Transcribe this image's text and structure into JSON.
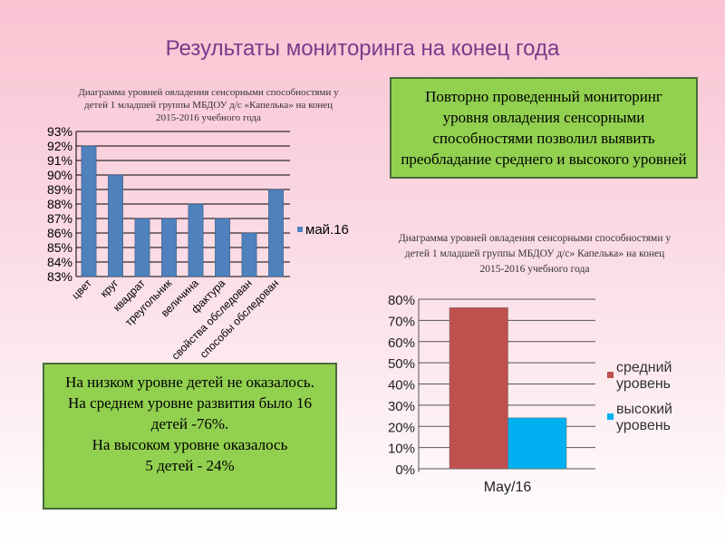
{
  "title": "Результаты мониторинга на конец года",
  "box_top_right": "Повторно проведенный мониторинг уровня овладения сенсорными способностями позволил выявить преобладание среднего и высокого уровней",
  "box_bottom_left": [
    "На низком уровне детей не оказалось.",
    "На среднем уровне развития было 16 детей -76%.",
    "На высоком уровне оказалось",
    "5 детей - 24%"
  ],
  "chart_data": [
    {
      "type": "bar",
      "title": "Диаграмма уровней овладения сенсорными способностями у детей 1 младшей группы МБДОУ д/с «Капелька» на конец 2015-2016 учебного года",
      "categories": [
        "цвет",
        "круг",
        "квадрат",
        "треугольник",
        "величина",
        "фактура",
        "свойства обследован",
        "способы обследован"
      ],
      "series": [
        {
          "name": "май.16",
          "values": [
            92,
            90,
            87,
            87,
            88,
            87,
            86,
            89
          ],
          "color": "#4f81bd"
        }
      ],
      "ylim": [
        83,
        93
      ],
      "yticks": [
        "83%",
        "84%",
        "85%",
        "86%",
        "87%",
        "88%",
        "89%",
        "90%",
        "91%",
        "92%",
        "93%"
      ],
      "legend": "right"
    },
    {
      "type": "bar",
      "title": "Диаграмма уровней овладения сенсорными способностями у детей 1 младшей группы МБДОУ д/с» Капелька» на конец 2015-2016 учебного года",
      "categories": [
        "May/16"
      ],
      "series": [
        {
          "name": "средний уровень",
          "values": [
            76
          ],
          "color": "#c0504d"
        },
        {
          "name": "высокий уровень",
          "values": [
            24
          ],
          "color": "#00b0f0"
        }
      ],
      "ylim": [
        0,
        80
      ],
      "yticks": [
        "0%",
        "10%",
        "20%",
        "30%",
        "40%",
        "50%",
        "60%",
        "70%",
        "80%"
      ],
      "legend": "right"
    }
  ]
}
